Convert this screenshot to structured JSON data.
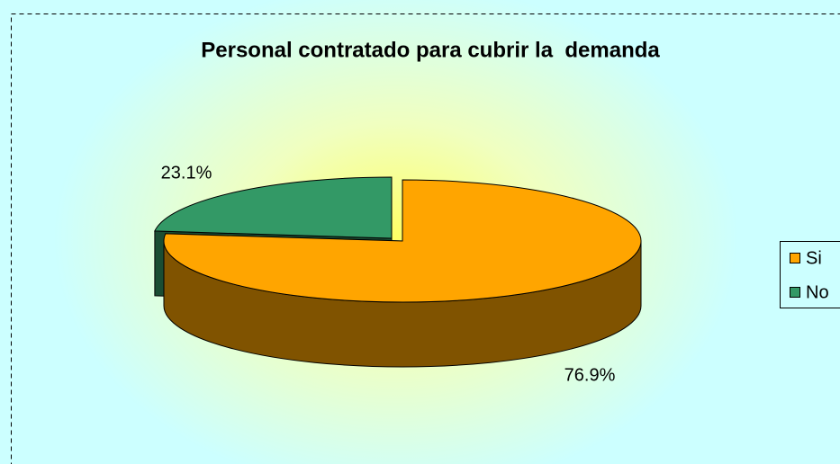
{
  "chart_data": {
    "type": "pie",
    "title": "Personal contratado para cubrir la  demanda",
    "categories": [
      "Si",
      "No"
    ],
    "values": [
      76.9,
      23.1
    ],
    "value_labels": [
      "76.9%",
      "23.1%"
    ],
    "colors": [
      "#ffa500",
      "#339966"
    ],
    "legend": "right"
  }
}
